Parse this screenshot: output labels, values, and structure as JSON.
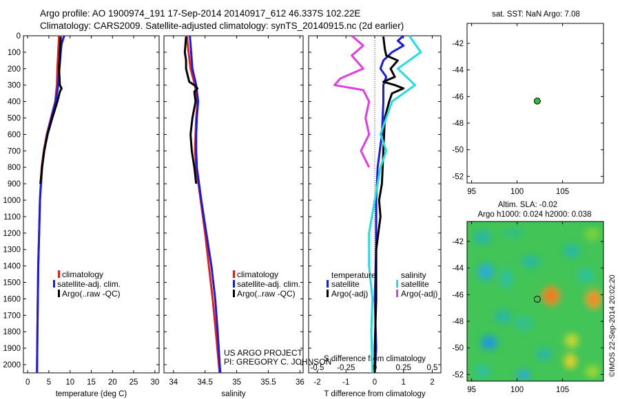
{
  "header": {
    "line1": "Argo profile: AO 1900974_191 17-Sep-2014 20140917_612 46.337S 102.22E",
    "line2": "Climatology: CARS2009. Satellite-adjusted climatology: synTS_20140915.nc (2d earlier)"
  },
  "colors": {
    "climatology": "#e0201c",
    "satellite_clim": "#1a1ae6",
    "argo": "#000000",
    "satellite_sal": "#22dede",
    "argo_sal": "#e03ce0",
    "float_marker": "#33bb33"
  },
  "depth_axis": {
    "min": 0,
    "max": 2050,
    "ticks": [
      0,
      100,
      200,
      300,
      400,
      500,
      600,
      700,
      800,
      900,
      1000,
      1100,
      1200,
      1300,
      1400,
      1500,
      1600,
      1700,
      1800,
      1900,
      2000
    ]
  },
  "chart_data": [
    {
      "type": "line",
      "id": "temperature",
      "xlabel": "temperature (deg C)",
      "ylabel": "",
      "xlim": [
        -1,
        31
      ],
      "xticks": [
        0,
        5,
        10,
        15,
        20,
        25,
        30
      ],
      "ylim": [
        0,
        2050
      ],
      "legend": {
        "placement": "lower-center",
        "entries": [
          "climatology",
          "satellite-adj. clim.",
          "Argo(..raw -QC)"
        ]
      },
      "series": [
        {
          "name": "climatology",
          "color": "climatology",
          "depth": [
            0,
            100,
            200,
            300,
            400,
            500,
            600,
            700,
            800,
            1000,
            1200,
            1400,
            1600,
            1800,
            2050
          ],
          "values": [
            7.4,
            7.2,
            7.0,
            6.9,
            6.5,
            5.5,
            4.5,
            3.8,
            3.3,
            2.9,
            2.7,
            2.5,
            2.4,
            2.3,
            2.2
          ]
        },
        {
          "name": "satellite-adj. clim.",
          "color": "satellite_clim",
          "depth": [
            0,
            50,
            100,
            200,
            300,
            400,
            500,
            600,
            700,
            800,
            1000,
            1200,
            1400,
            1600,
            1800,
            2050
          ],
          "values": [
            8.6,
            8.0,
            7.8,
            7.5,
            7.2,
            6.6,
            5.6,
            4.6,
            3.9,
            3.4,
            2.9,
            2.7,
            2.5,
            2.4,
            2.3,
            2.2
          ]
        },
        {
          "name": "Argo(..raw -QC)",
          "color": "argo",
          "depth": [
            5,
            100,
            200,
            300,
            320,
            340,
            400,
            500,
            600,
            700,
            800,
            900
          ],
          "values": [
            7.8,
            7.6,
            7.4,
            7.6,
            8.0,
            7.6,
            7.0,
            5.8,
            4.7,
            3.9,
            3.4,
            3.0
          ]
        }
      ]
    },
    {
      "type": "line",
      "id": "salinity",
      "xlabel": "salinity",
      "ylabel": "",
      "xlim": [
        33.85,
        36.05
      ],
      "xticks": [
        34,
        34.5,
        35,
        35.5,
        36
      ],
      "ylim": [
        0,
        2050
      ],
      "legend": {
        "placement": "lower-center",
        "entries": [
          "climatology",
          "satellite-adj. clim.",
          "Argo(..raw -QC)"
        ]
      },
      "series": [
        {
          "name": "climatology",
          "color": "climatology",
          "depth": [
            0,
            100,
            200,
            300,
            400,
            500,
            600,
            700,
            800,
            1000,
            1200,
            1400,
            1600,
            1800,
            2050
          ],
          "values": [
            34.21,
            34.24,
            34.27,
            34.34,
            34.38,
            34.36,
            34.35,
            34.34,
            34.36,
            34.43,
            34.5,
            34.56,
            34.62,
            34.67,
            34.73
          ]
        },
        {
          "name": "satellite-adj. clim.",
          "color": "satellite_clim",
          "depth": [
            0,
            100,
            200,
            300,
            400,
            500,
            600,
            700,
            800,
            1000,
            1200,
            1400,
            1600,
            1800,
            2050
          ],
          "values": [
            34.26,
            34.28,
            34.3,
            34.36,
            34.39,
            34.37,
            34.36,
            34.36,
            34.37,
            34.44,
            34.52,
            34.6,
            34.66,
            34.7,
            34.74
          ]
        },
        {
          "name": "Argo(..raw -QC)",
          "color": "argo",
          "depth": [
            5,
            100,
            150,
            200,
            280,
            300,
            320,
            340,
            400,
            500,
            600,
            700,
            800,
            900
          ],
          "values": [
            34.2,
            34.18,
            34.2,
            34.2,
            34.25,
            34.33,
            34.38,
            34.33,
            34.35,
            34.3,
            34.27,
            34.29,
            34.33,
            34.36
          ]
        }
      ]
    },
    {
      "type": "line",
      "id": "differences",
      "xlabel": "T difference from climatology",
      "xlabel_top": "S difference from climatology",
      "xlim": [
        -2.3,
        2.3
      ],
      "xticks": [
        -2,
        -1,
        0,
        1,
        2
      ],
      "xticks_top": [
        -0.5,
        -0.25,
        0,
        0.25,
        0.5
      ],
      "xticks_top_labels": [
        "-0.5",
        "-0.25",
        "0",
        "0.25",
        "0.5"
      ],
      "ylim": [
        0,
        2050
      ],
      "legend": {
        "placement": "lower-center",
        "title_left": "temperature",
        "title_right": "salinity",
        "entries": [
          "satellite",
          "Argo(-adj)",
          "satellite",
          "Argo(-adj)"
        ]
      },
      "series": [
        {
          "name": "satellite",
          "quantity": "temperature",
          "color": "satellite_clim",
          "depth": [
            0,
            30,
            60,
            100,
            150,
            200,
            250,
            300,
            400,
            600,
            800,
            1000,
            1300,
            1600,
            1900,
            2050
          ],
          "values": [
            1.0,
            0.8,
            1.0,
            0.6,
            0.3,
            0.2,
            0.4,
            0.3,
            0.3,
            0.25,
            0.1,
            0.05,
            0.05,
            0.0,
            0.05,
            0.0
          ]
        },
        {
          "name": "Argo(-adj)",
          "quantity": "temperature",
          "color": "argo",
          "depth": [
            5,
            80,
            120,
            150,
            200,
            250,
            280,
            300,
            320,
            350,
            400,
            500,
            700,
            900,
            1000,
            1100,
            1300,
            1600,
            1900,
            2050
          ],
          "values": [
            0.3,
            0.35,
            0.4,
            0.8,
            0.55,
            0.7,
            0.3,
            0.7,
            1.0,
            0.6,
            0.5,
            0.35,
            0.3,
            0.25,
            0.15,
            0.2,
            0.05,
            0.05,
            0.0,
            0.0
          ]
        },
        {
          "name": "satellite",
          "quantity": "salinity",
          "color": "satellite_sal",
          "depth": [
            0,
            100,
            200,
            300,
            400,
            500,
            600,
            700,
            800,
            1000,
            1200,
            1400,
            1600,
            1800,
            2050
          ],
          "values": [
            0.3,
            0.4,
            0.2,
            0.35,
            0.15,
            0.1,
            0.05,
            0.1,
            0.05,
            0.0,
            -0.05,
            -0.05,
            -0.02,
            -0.03,
            -0.02
          ]
        },
        {
          "name": "Argo(-adj)",
          "quantity": "salinity",
          "color": "argo_sal",
          "depth": [
            0,
            60,
            120,
            200,
            260,
            300,
            330,
            400,
            500,
            600,
            700,
            800
          ],
          "values": [
            -0.2,
            -0.1,
            -0.2,
            -0.1,
            -0.3,
            -0.35,
            -0.1,
            -0.05,
            -0.08,
            -0.05,
            -0.12,
            -0.05
          ]
        }
      ]
    }
  ],
  "pi_text": {
    "line1": "US ARGO PROJECT",
    "line2": "PI: GREGORY C. JOHNSON"
  },
  "sst_map": {
    "title": "sat. SST: NaN Argo: 7.08",
    "xlim": [
      94.5,
      109.5
    ],
    "ylim": [
      -52.5,
      -40.5
    ],
    "xticks": [
      95,
      100,
      105
    ],
    "yticks": [
      -42,
      -44,
      -46,
      -48,
      -50,
      -52
    ],
    "float_lon": 102.22,
    "float_lat": -46.337
  },
  "sla_map": {
    "title1": "Altim. SLA: -0.02",
    "title2": "Argo h1000: 0.024 h2000: 0.038",
    "xlim": [
      94.5,
      109.5
    ],
    "ylim": [
      -52.5,
      -40.5
    ],
    "xticks": [
      95,
      100,
      105
    ],
    "yticks": [
      -42,
      -44,
      -46,
      -48,
      -50,
      -52
    ],
    "float_lon": 102.22,
    "float_lat": -46.337,
    "credit": "©IMOS 22-Sep-2014 20:02:20"
  }
}
